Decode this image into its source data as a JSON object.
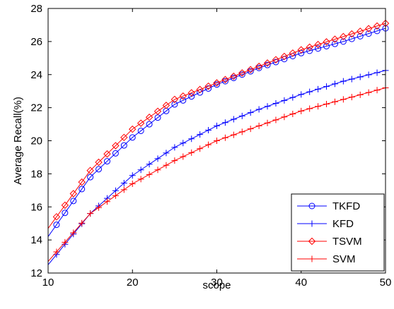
{
  "chart_data": {
    "type": "line",
    "title": "",
    "xlabel": "scope",
    "ylabel": "Average Recall(%)",
    "xlim": [
      10,
      50
    ],
    "ylim": [
      12,
      28
    ],
    "xticks": [
      10,
      20,
      30,
      40,
      50
    ],
    "yticks": [
      12,
      14,
      16,
      18,
      20,
      22,
      24,
      26,
      28
    ],
    "grid": false,
    "legend": {
      "placement": "bottom-right"
    },
    "x": [
      10,
      15,
      20,
      25,
      30,
      35,
      40,
      45,
      50
    ],
    "series": [
      {
        "name": "TKFD",
        "color": "#0000ff",
        "marker": "circle",
        "values": [
          14.2,
          17.8,
          20.2,
          22.2,
          23.4,
          24.4,
          25.3,
          26.0,
          26.8
        ]
      },
      {
        "name": "KFD",
        "color": "#0000ff",
        "marker": "plus",
        "values": [
          12.5,
          15.6,
          17.9,
          19.6,
          20.9,
          21.9,
          22.8,
          23.6,
          24.25
        ]
      },
      {
        "name": "TSVM",
        "color": "#ff0000",
        "marker": "diamond",
        "values": [
          14.7,
          18.2,
          20.7,
          22.5,
          23.5,
          24.5,
          25.5,
          26.3,
          27.1
        ]
      },
      {
        "name": "SVM",
        "color": "#ff0000",
        "marker": "plus",
        "values": [
          12.7,
          15.6,
          17.4,
          18.8,
          20.0,
          20.9,
          21.8,
          22.5,
          23.2
        ]
      }
    ]
  }
}
